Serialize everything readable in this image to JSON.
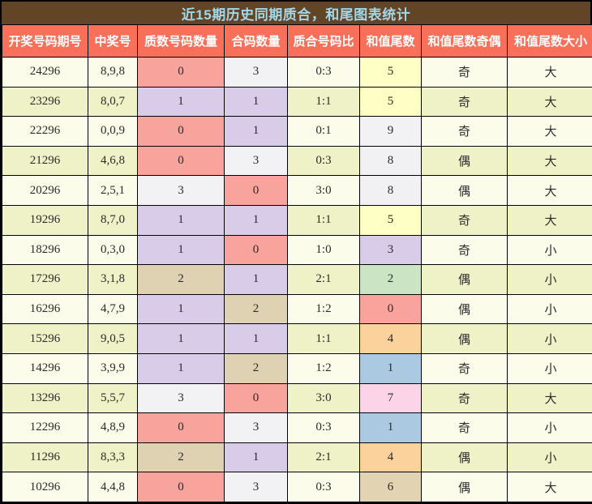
{
  "title": "近15期历史同期质合，和尾图表统计",
  "colors": {
    "title_bar_bg": "#614526",
    "title_text": "#a2d8ea",
    "header_bg": "#f9705a",
    "header_text": "#ffffff",
    "row_odd_bg": "#fbfce9",
    "row_even_bg": "#eff1c6",
    "grid_border": "#000000",
    "cell_text": "#2b2b2b"
  },
  "palette": {
    "count": {
      "0": "#f8a39c",
      "1": "#d9cce8",
      "2": "#ded2b3",
      "3": "#f2f1f3"
    },
    "tail": {
      "0": "#f8a39c",
      "1": "#abcae2",
      "2": "#cae4c4",
      "3": "#d9cce8",
      "4": "#fcd29c",
      "5": "#feffc5",
      "6": "#e2d3b2",
      "7": "#fbd4e8",
      "8": "#f1f1f4",
      "9": "#f2f2f5"
    }
  },
  "color_columns": {
    "2": "count",
    "3": "count",
    "5": "tail"
  },
  "chart_data": {
    "type": "table",
    "title": "近15期历史同期质合，和尾图表统计",
    "columns": [
      "开奖号码期号",
      "中奖号",
      "质数号码数量",
      "合码数量",
      "质合号码比",
      "和值尾数",
      "和值尾数奇偶",
      "和值尾数大小"
    ],
    "rows": [
      [
        "24296",
        "8,9,8",
        "0",
        "3",
        "0:3",
        "5",
        "奇",
        "大"
      ],
      [
        "23296",
        "8,0,7",
        "1",
        "1",
        "1:1",
        "5",
        "奇",
        "大"
      ],
      [
        "22296",
        "0,0,9",
        "0",
        "1",
        "0:1",
        "9",
        "奇",
        "大"
      ],
      [
        "21296",
        "4,6,8",
        "0",
        "3",
        "0:3",
        "8",
        "偶",
        "大"
      ],
      [
        "20296",
        "2,5,1",
        "3",
        "0",
        "3:0",
        "8",
        "偶",
        "大"
      ],
      [
        "19296",
        "8,7,0",
        "1",
        "1",
        "1:1",
        "5",
        "奇",
        "大"
      ],
      [
        "18296",
        "0,3,0",
        "1",
        "0",
        "1:0",
        "3",
        "奇",
        "小"
      ],
      [
        "17296",
        "3,1,8",
        "2",
        "1",
        "2:1",
        "2",
        "偶",
        "小"
      ],
      [
        "16296",
        "4,7,9",
        "1",
        "2",
        "1:2",
        "0",
        "偶",
        "小"
      ],
      [
        "15296",
        "9,0,5",
        "1",
        "1",
        "1:1",
        "4",
        "偶",
        "小"
      ],
      [
        "14296",
        "3,9,9",
        "1",
        "2",
        "1:2",
        "1",
        "奇",
        "小"
      ],
      [
        "13296",
        "5,5,7",
        "3",
        "0",
        "3:0",
        "7",
        "奇",
        "大"
      ],
      [
        "12296",
        "4,8,9",
        "0",
        "3",
        "0:3",
        "1",
        "奇",
        "小"
      ],
      [
        "11296",
        "8,3,3",
        "2",
        "1",
        "2:1",
        "4",
        "偶",
        "小"
      ],
      [
        "10296",
        "4,4,8",
        "0",
        "3",
        "0:3",
        "6",
        "偶",
        "大"
      ]
    ]
  }
}
